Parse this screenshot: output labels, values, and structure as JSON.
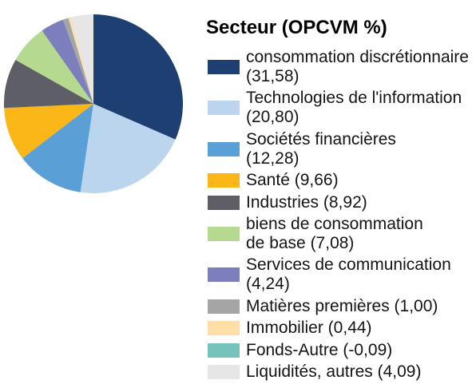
{
  "chart_data": {
    "type": "pie",
    "title": "Secteur (OPCVM %)",
    "categories": [
      "consommation discrétionnaire",
      "Technologies de l'information",
      "Sociétés financières",
      "Santé",
      "Industries",
      "biens de consommation de base",
      "Services de communication",
      "Matières premières",
      "Immobilier",
      "Fonds-Autre",
      "Liquidités, autres"
    ],
    "values": [
      31.58,
      20.8,
      12.28,
      9.66,
      8.92,
      7.08,
      4.24,
      1.0,
      0.44,
      -0.09,
      4.09
    ],
    "colors": [
      "#1e3f72",
      "#bcd5ee",
      "#5a9fd6",
      "#fbb618",
      "#5e5f66",
      "#b5d98e",
      "#7c7fbb",
      "#a5a5a7",
      "#fddfa7",
      "#76c3bc",
      "#e6e6e6"
    ],
    "legend": "right",
    "start_angle": "top",
    "direction": "clockwise"
  }
}
